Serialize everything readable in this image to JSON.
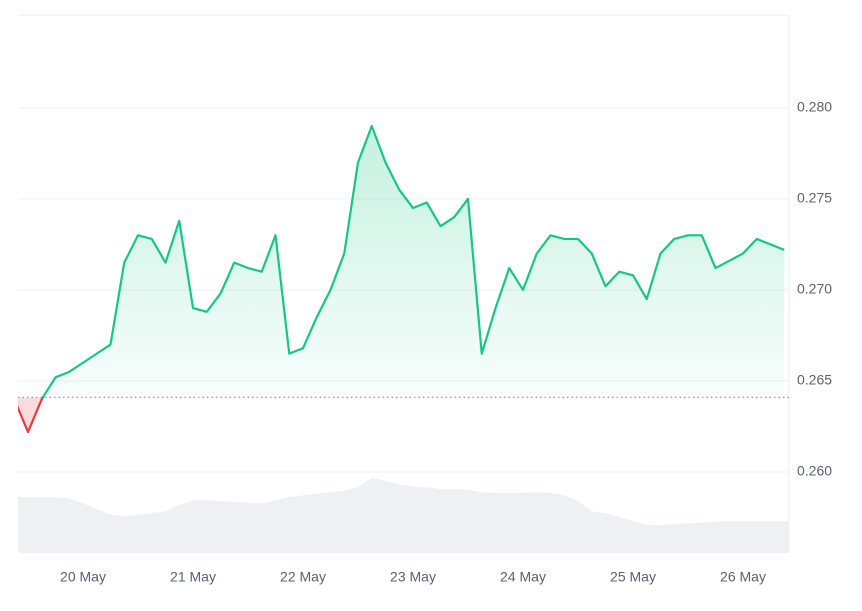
{
  "chart_data": {
    "type": "line",
    "categories": [
      null,
      null,
      null,
      null,
      null,
      "20 May",
      null,
      null,
      null,
      null,
      null,
      null,
      null,
      "21 May",
      null,
      null,
      null,
      null,
      null,
      null,
      null,
      "22 May",
      null,
      null,
      null,
      null,
      null,
      null,
      null,
      "23 May",
      null,
      null,
      null,
      null,
      null,
      null,
      null,
      "24 May",
      null,
      null,
      null,
      null,
      null,
      null,
      null,
      "25 May",
      null,
      null,
      null,
      null,
      null,
      null,
      null,
      "26 May",
      null,
      null,
      null
    ],
    "series": [
      {
        "color": "#16c784",
        "values": [
          0.264,
          0.2622,
          0.264,
          0.2652,
          0.2655,
          0.266,
          0.2665,
          0.267,
          0.2715,
          0.273,
          0.2728,
          0.2715,
          0.2738,
          0.269,
          0.2688,
          0.2698,
          0.2715,
          0.2712,
          0.271,
          0.273,
          0.2665,
          0.2668,
          0.2685,
          0.27,
          0.272,
          0.277,
          0.279,
          0.277,
          0.2755,
          0.2745,
          0.2748,
          0.2735,
          0.274,
          0.275,
          0.2665,
          0.269,
          0.2712,
          0.27,
          0.272,
          0.273,
          0.2728,
          0.2728,
          0.272,
          0.2702,
          0.271,
          0.2708,
          0.2695,
          0.272,
          0.2728,
          0.273,
          0.273,
          0.2712,
          0.2716,
          0.272,
          0.2728,
          0.2725,
          0.2722
        ]
      }
    ],
    "down_color": "#ea3943",
    "baseline": 0.2641,
    "ylim": [
      0.25555,
      0.2851
    ],
    "yticks": [
      {
        "value": 0.26,
        "label": "0.260"
      },
      {
        "value": 0.265,
        "label": "0.265"
      },
      {
        "value": 0.27,
        "label": "0.270"
      },
      {
        "value": 0.275,
        "label": "0.275"
      },
      {
        "value": 0.28,
        "label": "0.280"
      }
    ],
    "grid": true,
    "volume": {
      "color": "#eef0f3",
      "vlim": [
        0,
        100
      ],
      "values": [
        70,
        70,
        70,
        70,
        68,
        62,
        55,
        48,
        46,
        48,
        50,
        52,
        60,
        66,
        66,
        65,
        64,
        63,
        62,
        66,
        70,
        72,
        74,
        76,
        78,
        82,
        94,
        90,
        86,
        83,
        82,
        80,
        80,
        79,
        76,
        75,
        75,
        75,
        76,
        75,
        72,
        65,
        52,
        50,
        45,
        40,
        35,
        35,
        36,
        37,
        38,
        39,
        40,
        40,
        40,
        40,
        40
      ]
    }
  }
}
